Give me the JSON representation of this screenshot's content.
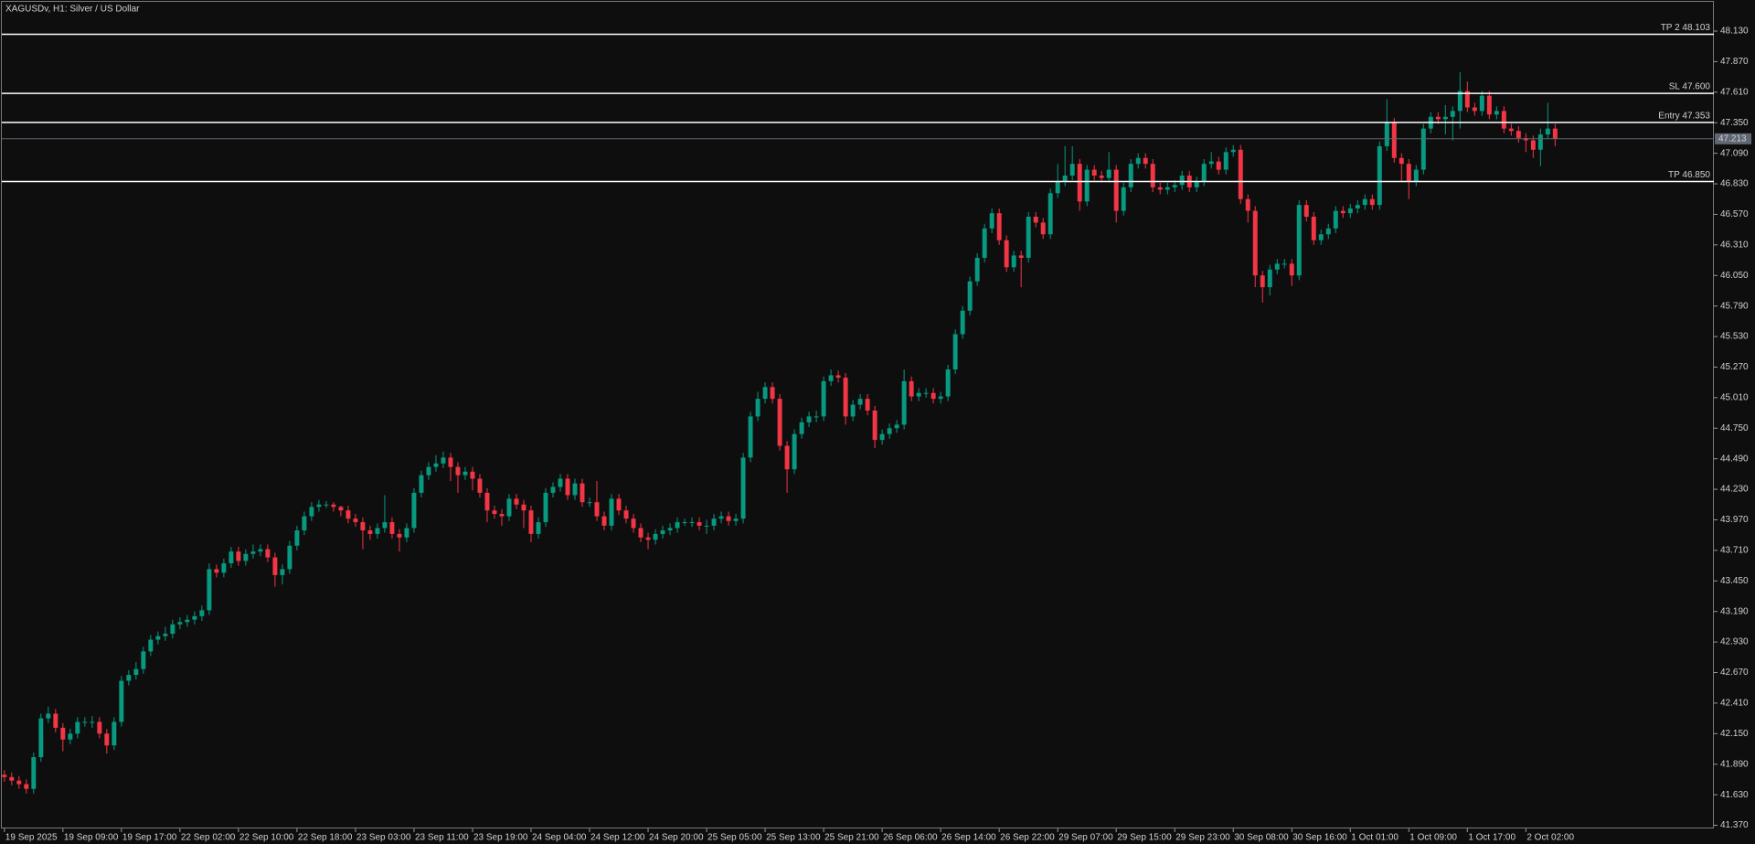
{
  "chart_data": {
    "type": "candlestick",
    "title": "XAGUSDv, H1:  Silver / US Dollar",
    "up_color": "#089981",
    "down_color": "#f23645",
    "level_color": "#ffffff",
    "last_color": "#5f6773",
    "xlim": [
      -0.6,
      233.7
    ],
    "ylim": [
      41.343,
      48.379
    ],
    "xticks": [
      {
        "value": 0,
        "label": "19 Sep 2025"
      },
      {
        "value": 8,
        "label": "19 Sep 09:00"
      },
      {
        "value": 16,
        "label": "19 Sep 17:00"
      },
      {
        "value": 24,
        "label": "22 Sep 02:00"
      },
      {
        "value": 32,
        "label": "22 Sep 10:00"
      },
      {
        "value": 40,
        "label": "22 Sep 18:00"
      },
      {
        "value": 48,
        "label": "23 Sep 03:00"
      },
      {
        "value": 56,
        "label": "23 Sep 11:00"
      },
      {
        "value": 64,
        "label": "23 Sep 19:00"
      },
      {
        "value": 72,
        "label": "24 Sep 04:00"
      },
      {
        "value": 80,
        "label": "24 Sep 12:00"
      },
      {
        "value": 88,
        "label": "24 Sep 20:00"
      },
      {
        "value": 96,
        "label": "25 Sep 05:00"
      },
      {
        "value": 104,
        "label": "25 Sep 13:00"
      },
      {
        "value": 112,
        "label": "25 Sep 21:00"
      },
      {
        "value": 120,
        "label": "26 Sep 06:00"
      },
      {
        "value": 128,
        "label": "26 Sep 14:00"
      },
      {
        "value": 136,
        "label": "26 Sep 22:00"
      },
      {
        "value": 144,
        "label": "29 Sep 07:00"
      },
      {
        "value": 152,
        "label": "29 Sep 15:00"
      },
      {
        "value": 160,
        "label": "29 Sep 23:00"
      },
      {
        "value": 168,
        "label": "30 Sep 08:00"
      },
      {
        "value": 176,
        "label": "30 Sep 16:00"
      },
      {
        "value": 184,
        "label": "1 Oct 01:00"
      },
      {
        "value": 192,
        "label": "1 Oct 09:00"
      },
      {
        "value": 200,
        "label": "1 Oct 17:00"
      },
      {
        "value": 208,
        "label": "2 Oct 02:00"
      }
    ],
    "yticks": [
      {
        "value": 48.13,
        "label": "48.130"
      },
      {
        "value": 47.87,
        "label": "47.870"
      },
      {
        "value": 47.61,
        "label": "47.610"
      },
      {
        "value": 47.35,
        "label": "47.350"
      },
      {
        "value": 47.09,
        "label": "47.090"
      },
      {
        "value": 46.83,
        "label": "46.830"
      },
      {
        "value": 46.57,
        "label": "46.570"
      },
      {
        "value": 46.31,
        "label": "46.310"
      },
      {
        "value": 46.05,
        "label": "46.050"
      },
      {
        "value": 45.79,
        "label": "45.790"
      },
      {
        "value": 45.53,
        "label": "45.530"
      },
      {
        "value": 45.27,
        "label": "45.270"
      },
      {
        "value": 45.01,
        "label": "45.010"
      },
      {
        "value": 44.75,
        "label": "44.750"
      },
      {
        "value": 44.49,
        "label": "44.490"
      },
      {
        "value": 44.23,
        "label": "44.230"
      },
      {
        "value": 43.97,
        "label": "43.970"
      },
      {
        "value": 43.71,
        "label": "43.710"
      },
      {
        "value": 43.45,
        "label": "43.450"
      },
      {
        "value": 43.19,
        "label": "43.190"
      },
      {
        "value": 42.93,
        "label": "42.930"
      },
      {
        "value": 42.67,
        "label": "42.670"
      },
      {
        "value": 42.41,
        "label": "42.410"
      },
      {
        "value": 42.15,
        "label": "42.150"
      },
      {
        "value": 41.89,
        "label": "41.890"
      },
      {
        "value": 41.63,
        "label": "41.630"
      },
      {
        "value": 41.37,
        "label": "41.370"
      }
    ],
    "levels": [
      {
        "label": "TP 2 48.103",
        "value": 48.103
      },
      {
        "label": "SL 47.600",
        "value": 47.6
      },
      {
        "label": "Entry 47.353",
        "value": 47.353
      },
      {
        "label": "TP 46.850",
        "value": 46.85
      }
    ],
    "last_price": 47.213,
    "open": [
      41.8,
      41.78,
      41.75,
      41.72,
      41.68,
      41.95,
      42.28,
      42.32,
      42.2,
      42.1,
      42.15,
      42.25,
      42.25,
      42.25,
      42.15,
      42.05,
      42.25,
      42.6,
      42.65,
      42.7,
      42.85,
      42.95,
      42.98,
      43.0,
      43.08,
      43.1,
      43.12,
      43.15,
      43.2,
      43.55,
      43.52,
      43.6,
      43.7,
      43.62,
      43.68,
      43.7,
      43.72,
      43.65,
      43.5,
      43.55,
      43.75,
      43.88,
      44.0,
      44.08,
      44.1,
      44.1,
      44.08,
      44.05,
      43.98,
      43.95,
      43.88,
      43.85,
      43.9,
      43.95,
      43.85,
      43.82,
      43.9,
      44.2,
      44.35,
      44.42,
      44.45,
      44.5,
      44.42,
      44.35,
      44.38,
      44.32,
      44.2,
      44.05,
      44.02,
      44.0,
      44.15,
      44.1,
      44.05,
      43.85,
      43.95,
      44.2,
      44.25,
      44.32,
      44.18,
      44.28,
      44.12,
      44.12,
      44.0,
      43.92,
      44.15,
      44.05,
      43.98,
      43.9,
      43.82,
      43.8,
      43.85,
      43.88,
      43.9,
      43.95,
      43.95,
      43.95,
      43.92,
      43.92,
      43.98,
      44.0,
      43.96,
      43.98,
      44.5,
      44.85,
      45.0,
      45.1,
      45.0,
      44.6,
      44.4,
      44.7,
      44.8,
      44.85,
      44.85,
      45.15,
      45.2,
      45.18,
      44.85,
      44.95,
      45.0,
      44.9,
      44.65,
      44.7,
      44.75,
      44.78,
      45.15,
      45.02,
      45.05,
      45.05,
      45.0,
      45.02,
      45.25,
      45.55,
      45.75,
      46.0,
      46.2,
      46.45,
      46.58,
      46.35,
      46.12,
      46.22,
      46.2,
      46.55,
      46.5,
      46.4,
      46.75,
      46.85,
      46.9,
      47.0,
      46.68,
      46.95,
      46.9,
      46.88,
      46.95,
      46.6,
      46.8,
      47.0,
      47.05,
      47.0,
      46.8,
      46.78,
      46.8,
      46.82,
      46.9,
      46.8,
      46.85,
      47.0,
      47.02,
      46.95,
      47.1,
      47.12,
      46.7,
      46.6,
      46.05,
      45.95,
      46.1,
      46.15,
      46.15,
      46.05,
      46.65,
      46.55,
      46.35,
      46.4,
      46.45,
      46.6,
      46.58,
      46.62,
      46.65,
      46.7,
      46.65,
      47.15,
      47.35,
      47.05,
      47.0,
      46.85,
      46.95,
      47.3,
      47.4,
      47.38,
      47.4,
      47.45,
      47.62,
      47.48,
      47.45,
      47.58,
      47.42,
      47.45,
      47.3,
      47.28,
      47.22,
      47.2,
      47.12,
      47.25,
      47.3
    ],
    "high": [
      41.84,
      41.82,
      41.79,
      41.76,
      41.99,
      42.32,
      42.38,
      42.36,
      42.24,
      42.19,
      42.29,
      42.29,
      42.3,
      42.29,
      42.19,
      42.29,
      42.64,
      42.69,
      42.76,
      42.89,
      42.99,
      43.02,
      43.06,
      43.12,
      43.14,
      43.16,
      43.19,
      43.24,
      43.6,
      43.59,
      43.64,
      43.74,
      43.74,
      43.72,
      43.76,
      43.76,
      43.76,
      43.69,
      43.59,
      43.79,
      43.92,
      44.04,
      44.12,
      44.14,
      44.13,
      44.12,
      44.09,
      44.09,
      44.02,
      43.99,
      43.92,
      43.94,
      44.18,
      43.99,
      43.89,
      43.94,
      44.24,
      44.39,
      44.46,
      44.52,
      44.55,
      44.54,
      44.46,
      44.42,
      44.42,
      44.36,
      44.24,
      44.09,
      44.06,
      44.19,
      44.19,
      44.14,
      44.09,
      43.99,
      44.24,
      44.29,
      44.36,
      44.36,
      44.32,
      44.32,
      44.16,
      44.3,
      44.04,
      44.19,
      44.19,
      44.09,
      44.02,
      43.94,
      43.86,
      43.89,
      43.92,
      43.94,
      43.99,
      43.98,
      43.99,
      43.99,
      43.97,
      44.02,
      44.04,
      44.04,
      44.02,
      44.54,
      44.89,
      45.06,
      45.14,
      45.14,
      45.04,
      44.64,
      44.74,
      44.84,
      44.89,
      44.9,
      45.19,
      45.25,
      45.24,
      45.22,
      44.99,
      45.04,
      45.04,
      44.94,
      44.74,
      44.79,
      44.82,
      45.25,
      45.19,
      45.09,
      45.09,
      45.09,
      45.06,
      45.29,
      45.59,
      45.79,
      46.04,
      46.24,
      46.49,
      46.62,
      46.62,
      46.39,
      46.26,
      46.26,
      46.59,
      46.59,
      46.54,
      46.79,
      47.0,
      47.15,
      47.15,
      47.04,
      46.99,
      46.99,
      46.94,
      47.1,
      46.99,
      46.84,
      47.04,
      47.09,
      47.09,
      47.04,
      46.84,
      46.84,
      46.86,
      46.94,
      46.94,
      46.89,
      47.04,
      47.1,
      47.06,
      47.14,
      47.16,
      47.16,
      46.74,
      46.64,
      46.09,
      46.14,
      46.19,
      46.19,
      46.19,
      46.69,
      46.69,
      46.59,
      46.44,
      46.49,
      46.64,
      46.64,
      46.66,
      46.69,
      46.74,
      46.74,
      47.19,
      47.55,
      47.39,
      47.09,
      47.04,
      46.99,
      47.34,
      47.44,
      47.44,
      47.5,
      47.49,
      47.78,
      47.7,
      47.52,
      47.62,
      47.62,
      47.49,
      47.49,
      47.34,
      47.32,
      47.26,
      47.24,
      47.3,
      47.52,
      47.34
    ],
    "low": [
      41.74,
      41.71,
      41.68,
      41.64,
      41.64,
      41.91,
      42.24,
      42.16,
      42.0,
      42.06,
      42.11,
      42.21,
      42.2,
      42.11,
      41.98,
      42.01,
      42.21,
      42.56,
      42.61,
      42.66,
      42.81,
      42.91,
      42.94,
      42.96,
      43.04,
      43.06,
      43.08,
      43.11,
      43.16,
      43.48,
      43.48,
      43.56,
      43.58,
      43.58,
      43.64,
      43.66,
      43.61,
      43.4,
      43.42,
      43.51,
      43.71,
      43.84,
      43.96,
      44.04,
      44.07,
      44.04,
      44.0,
      43.94,
      43.91,
      43.72,
      43.8,
      43.81,
      43.86,
      43.81,
      43.7,
      43.78,
      43.86,
      44.16,
      44.31,
      44.38,
      44.41,
      44.3,
      44.2,
      44.31,
      44.22,
      44.16,
      43.95,
      43.98,
      43.92,
      43.96,
      44.06,
      43.9,
      43.78,
      43.81,
      43.91,
      44.16,
      44.21,
      44.14,
      44.14,
      44.08,
      44.08,
      43.96,
      43.88,
      43.88,
      44.01,
      43.94,
      43.86,
      43.78,
      43.72,
      43.76,
      43.81,
      43.84,
      43.86,
      43.92,
      43.91,
      43.88,
      43.85,
      43.88,
      43.94,
      43.92,
      43.92,
      43.94,
      44.46,
      44.81,
      44.96,
      44.96,
      44.56,
      44.2,
      44.36,
      44.66,
      44.76,
      44.8,
      44.81,
      45.11,
      45.14,
      44.78,
      44.81,
      44.91,
      44.86,
      44.58,
      44.61,
      44.66,
      44.71,
      44.74,
      44.98,
      44.98,
      45.01,
      44.96,
      44.96,
      44.98,
      45.21,
      45.51,
      45.71,
      45.96,
      46.16,
      46.41,
      46.31,
      46.08,
      46.08,
      45.95,
      46.16,
      46.46,
      46.36,
      46.36,
      46.71,
      46.81,
      46.86,
      46.6,
      46.64,
      46.86,
      46.84,
      46.84,
      46.5,
      46.56,
      46.76,
      46.96,
      46.96,
      46.76,
      46.74,
      46.74,
      46.76,
      46.78,
      46.76,
      46.76,
      46.81,
      46.96,
      46.91,
      46.91,
      47.06,
      46.66,
      46.5,
      45.95,
      45.82,
      45.88,
      46.06,
      46.11,
      45.96,
      46.01,
      46.51,
      46.31,
      46.31,
      46.36,
      46.41,
      46.54,
      46.54,
      46.58,
      46.61,
      46.61,
      46.61,
      47.11,
      47.01,
      46.85,
      46.7,
      46.81,
      46.91,
      47.26,
      47.34,
      47.25,
      47.2,
      47.3,
      47.44,
      47.41,
      47.41,
      47.38,
      47.38,
      47.26,
      47.24,
      47.18,
      47.1,
      47.05,
      46.98,
      47.21,
      47.15
    ],
    "close": [
      41.78,
      41.75,
      41.72,
      41.68,
      41.95,
      42.28,
      42.32,
      42.2,
      42.1,
      42.15,
      42.25,
      42.25,
      42.25,
      42.15,
      42.05,
      42.25,
      42.6,
      42.65,
      42.7,
      42.85,
      42.95,
      42.98,
      43.0,
      43.08,
      43.1,
      43.12,
      43.15,
      43.2,
      43.55,
      43.52,
      43.6,
      43.7,
      43.62,
      43.68,
      43.7,
      43.72,
      43.65,
      43.5,
      43.55,
      43.75,
      43.88,
      44.0,
      44.08,
      44.1,
      44.1,
      44.08,
      44.05,
      43.98,
      43.95,
      43.88,
      43.85,
      43.9,
      43.95,
      43.85,
      43.82,
      43.9,
      44.2,
      44.35,
      44.42,
      44.45,
      44.5,
      44.42,
      44.35,
      44.38,
      44.32,
      44.2,
      44.05,
      44.02,
      44.0,
      44.15,
      44.1,
      44.05,
      43.85,
      43.95,
      44.2,
      44.25,
      44.32,
      44.18,
      44.28,
      44.12,
      44.12,
      44.0,
      43.92,
      44.15,
      44.05,
      43.98,
      43.9,
      43.82,
      43.8,
      43.85,
      43.88,
      43.9,
      43.95,
      43.95,
      43.95,
      43.92,
      43.92,
      43.98,
      44.0,
      43.96,
      43.98,
      44.5,
      44.85,
      45.0,
      45.1,
      45.0,
      44.6,
      44.4,
      44.7,
      44.8,
      44.85,
      44.85,
      45.15,
      45.2,
      45.18,
      44.85,
      44.95,
      45.0,
      44.9,
      44.65,
      44.7,
      44.75,
      44.78,
      45.15,
      45.02,
      45.05,
      45.05,
      45.0,
      45.02,
      45.25,
      45.55,
      45.75,
      46.0,
      46.2,
      46.45,
      46.58,
      46.35,
      46.12,
      46.22,
      46.2,
      46.55,
      46.5,
      46.4,
      46.75,
      46.85,
      46.9,
      47.0,
      46.68,
      46.95,
      46.9,
      46.88,
      46.95,
      46.6,
      46.8,
      47.0,
      47.05,
      47.0,
      46.8,
      46.78,
      46.8,
      46.82,
      46.9,
      46.8,
      46.85,
      47.0,
      47.02,
      46.95,
      47.1,
      47.12,
      46.7,
      46.6,
      46.05,
      45.95,
      46.1,
      46.15,
      46.15,
      46.05,
      46.65,
      46.55,
      46.35,
      46.4,
      46.45,
      46.6,
      46.58,
      46.62,
      46.65,
      46.7,
      46.65,
      47.15,
      47.35,
      47.05,
      47.0,
      46.85,
      46.95,
      47.3,
      47.4,
      47.38,
      47.4,
      47.45,
      47.62,
      47.48,
      47.45,
      47.58,
      47.42,
      47.45,
      47.3,
      47.28,
      47.22,
      47.2,
      47.12,
      47.25,
      47.3,
      47.213
    ]
  }
}
